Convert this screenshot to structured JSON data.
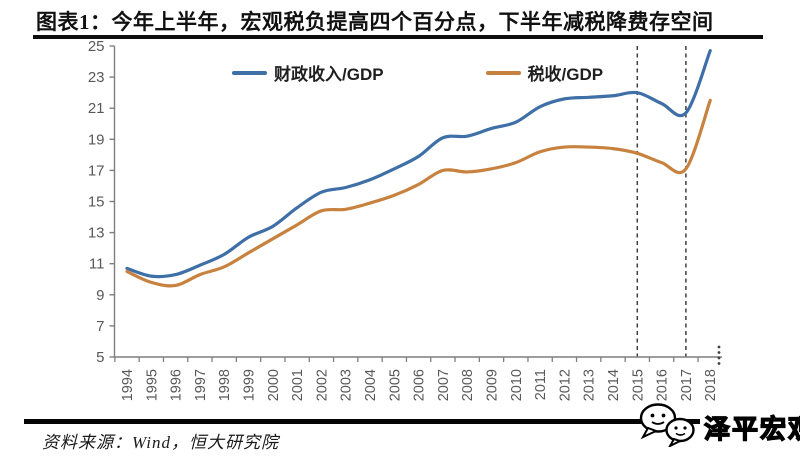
{
  "title": "图表1：今年上半年，宏观税负提高四个百分点，下半年减税降费存空间",
  "source": "资料来源：Wind，恒大研究院",
  "watermark": {
    "brand": "泽平宏观",
    "icon": "wechat-chat-bubbles"
  },
  "colors": {
    "fiscal_line": "#3e6fa6",
    "tax_line": "#c8823f",
    "axis": "#7f7f7f",
    "tick_label": "#595959",
    "dashed_line": "#3f3f3f",
    "title_text": "#111111"
  },
  "chart_data": {
    "type": "line",
    "x": [
      1994,
      1995,
      1996,
      1997,
      1998,
      1999,
      2000,
      2001,
      2002,
      2003,
      2004,
      2005,
      2006,
      2007,
      2008,
      2009,
      2010,
      2011,
      2012,
      2013,
      2014,
      2015,
      2016,
      2017,
      2018
    ],
    "series": [
      {
        "name": "财政收入/GDP",
        "color_key": "fiscal_line",
        "values": [
          10.7,
          10.2,
          10.3,
          10.9,
          11.6,
          12.7,
          13.4,
          14.6,
          15.6,
          15.9,
          16.4,
          17.1,
          17.9,
          19.1,
          19.2,
          19.7,
          20.1,
          21.1,
          21.6,
          21.7,
          21.8,
          22.0,
          21.3,
          20.7,
          24.7
        ]
      },
      {
        "name": "税收/GDP",
        "color_key": "tax_line",
        "values": [
          10.5,
          9.8,
          9.6,
          10.3,
          10.8,
          11.7,
          12.6,
          13.5,
          14.4,
          14.5,
          14.9,
          15.4,
          16.1,
          17.0,
          16.9,
          17.1,
          17.5,
          18.2,
          18.5,
          18.5,
          18.4,
          18.1,
          17.5,
          17.1,
          21.5
        ]
      }
    ],
    "ylim": [
      5,
      25
    ],
    "yticks": [
      25,
      23,
      21,
      19,
      17,
      15,
      13,
      11,
      9,
      7,
      5
    ],
    "grid": false,
    "legend_position": "top-inside",
    "annotations": {
      "dashed_vlines_x": [
        2015,
        2017
      ],
      "axis_end_dots": "⋮"
    }
  }
}
